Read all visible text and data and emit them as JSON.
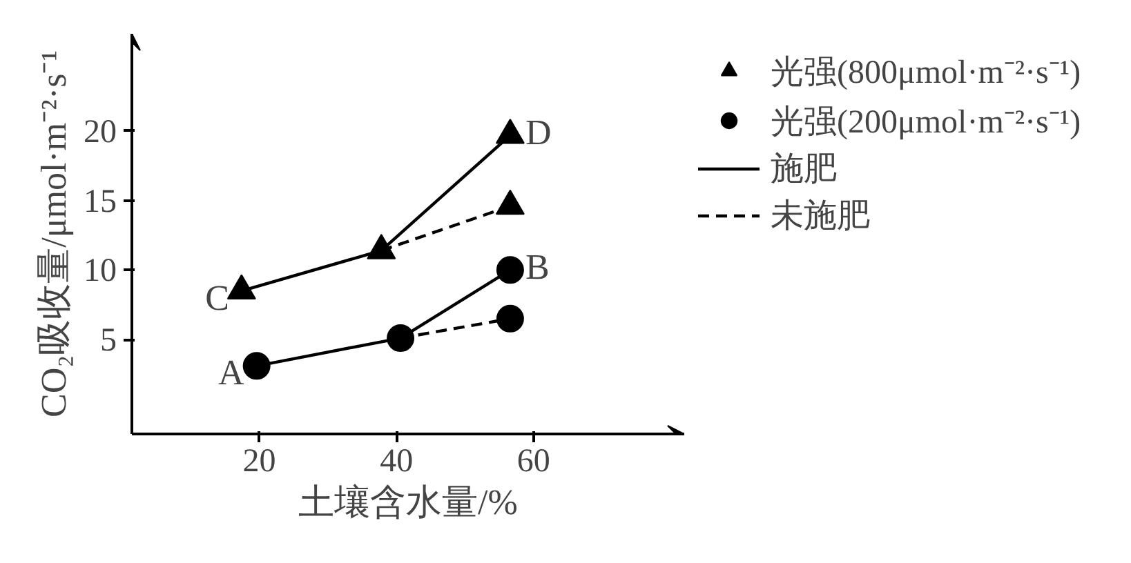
{
  "chart_data": {
    "type": "line",
    "xlabel": "土壤含水量/%",
    "ylabel": "CO₂吸收量/μmol·m⁻²·s⁻¹",
    "xlim": [
      1.4,
      82
    ],
    "ylim": [
      -1.8,
      27
    ],
    "xticks": [
      20,
      40,
      60
    ],
    "yticks": [
      5,
      10,
      15,
      20
    ],
    "grid": false,
    "legend": "top right",
    "series": [
      {
        "name": "光强(800μmol·m⁻²·s⁻¹)",
        "type": "scatter",
        "marker": "triangle",
        "color": "#000000",
        "x": [
          17.4,
          37.8,
          56.6,
          56.6
        ],
        "values": [
          8.5,
          11.4,
          19.7,
          14.6
        ]
      },
      {
        "name": "光强(200μmol·m⁻²·s⁻¹)",
        "type": "scatter",
        "marker": "circle",
        "color": "#000000",
        "x": [
          19.6,
          40.6,
          56.6,
          56.6
        ],
        "values": [
          3.1,
          5.1,
          10.0,
          6.5
        ]
      },
      {
        "name": "施肥",
        "line_style": "solid",
        "color": "#000000",
        "x": [
          17.4,
          37.8,
          56.6
        ],
        "values": [
          8.5,
          11.4,
          19.7
        ]
      },
      {
        "line_style": "solid",
        "color": "#000000",
        "x": [
          19.6,
          40.6,
          56.6
        ],
        "values": [
          3.1,
          5.1,
          10.0
        ]
      },
      {
        "name": "未施肥",
        "line_style": "dashed",
        "color": "#000000",
        "x": [
          37.8,
          56.6
        ],
        "values": [
          11.4,
          14.6
        ]
      },
      {
        "line_style": "dashed",
        "color": "#000000",
        "x": [
          40.6,
          56.6
        ],
        "values": [
          5.1,
          6.5
        ]
      }
    ],
    "annotations": [
      {
        "text": "A",
        "x": 19.6,
        "y": 3.1
      },
      {
        "text": "B",
        "x": 56.6,
        "y": 10.0
      },
      {
        "text": "C",
        "x": 17.4,
        "y": 8.5
      },
      {
        "text": "D",
        "x": 56.6,
        "y": 19.7
      }
    ]
  }
}
